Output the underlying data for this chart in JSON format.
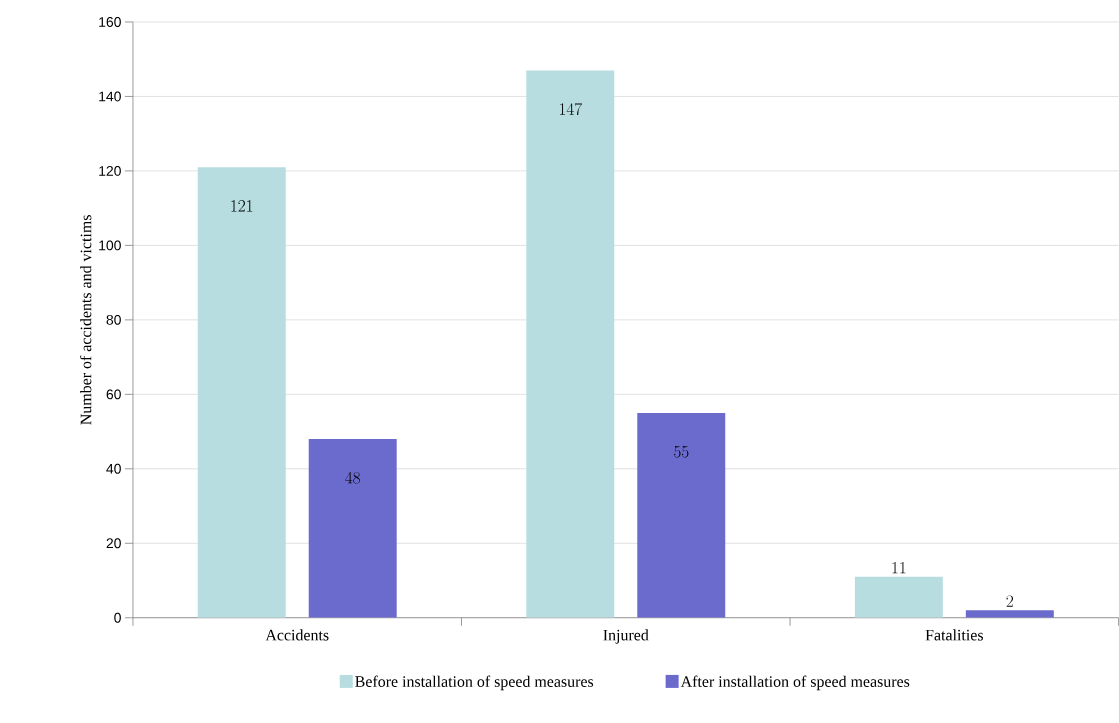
{
  "chart_data": {
    "type": "bar",
    "ylabel": "Number of accidents and victims",
    "categories": [
      "Accidents",
      "Injured",
      "Fatalities"
    ],
    "series": [
      {
        "name": "Before installation of speed measures",
        "color": "#b7dde0",
        "values": [
          121,
          147,
          11
        ]
      },
      {
        "name": "After installation of speed measures",
        "color": "#6b6bcd",
        "values": [
          48,
          55,
          2
        ]
      }
    ],
    "ylim": [
      0,
      160
    ],
    "yticks": [
      0,
      20,
      40,
      60,
      80,
      100,
      120,
      140,
      160
    ],
    "grid": "y",
    "legend": "bottom",
    "data_labels": true
  }
}
